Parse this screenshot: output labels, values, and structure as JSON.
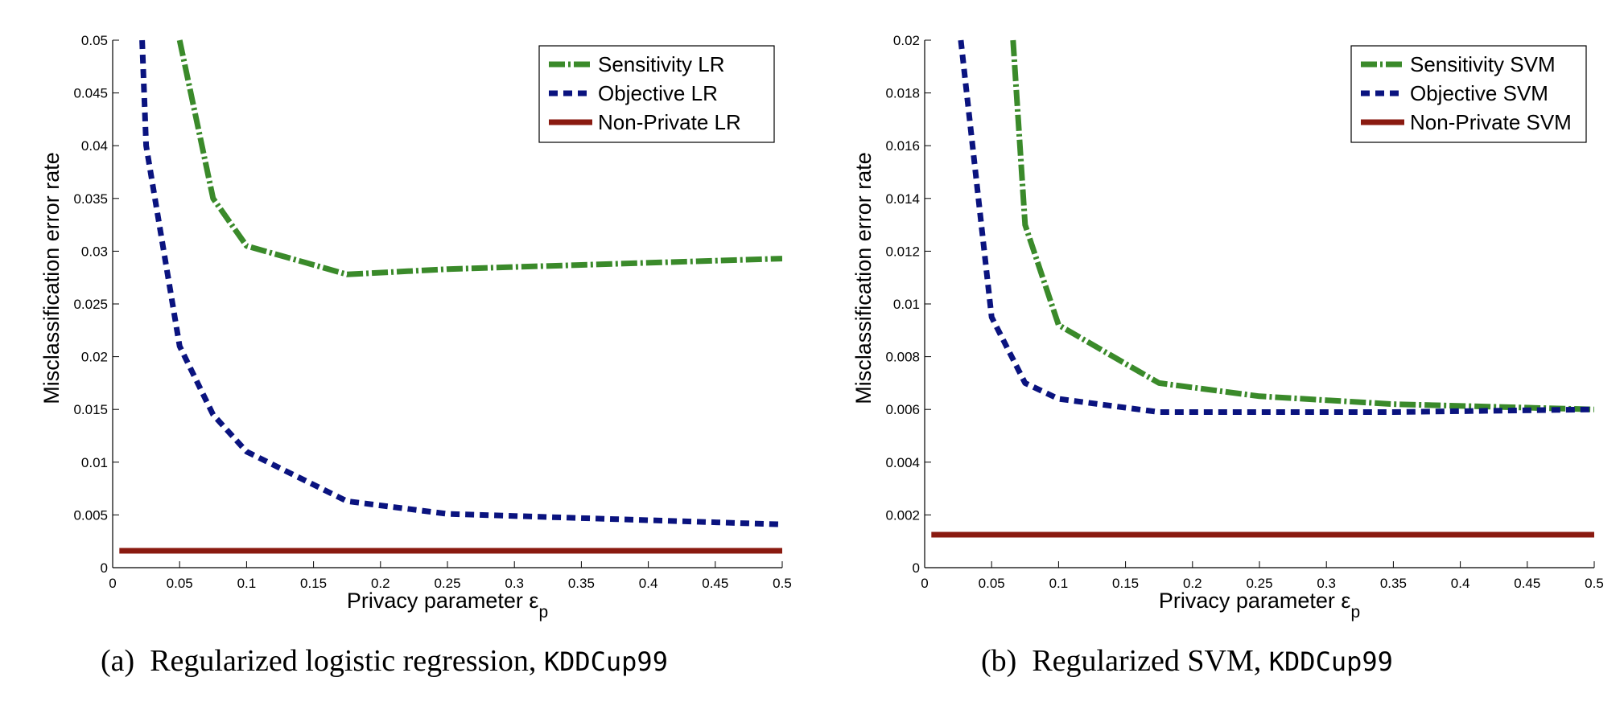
{
  "colors": {
    "sensitivity": "#3a8a2a",
    "objective": "#0a137f",
    "nonprivate": "#8a1a10"
  },
  "chart_data": [
    {
      "type": "line",
      "caption_prefix": "(a)",
      "caption_text": "Regularized logistic regression,",
      "caption_mono": "KDDCup99",
      "xlabel": "Privacy parameter ε",
      "xlabel_sub": "p",
      "ylabel": "Misclassification error rate",
      "xlim": [
        0,
        0.5
      ],
      "ylim": [
        0,
        0.05
      ],
      "xticks": [
        0,
        0.05,
        0.1,
        0.15,
        0.2,
        0.25,
        0.3,
        0.35,
        0.4,
        0.45,
        0.5
      ],
      "xtick_labels": [
        "0",
        "0.05",
        "0.1",
        "0.15",
        "0.2",
        "0.25",
        "0.3",
        "0.35",
        "0.4",
        "0.45",
        "0.5"
      ],
      "yticks": [
        0,
        0.005,
        0.01,
        0.015,
        0.02,
        0.025,
        0.03,
        0.035,
        0.04,
        0.045,
        0.05
      ],
      "ytick_labels": [
        "0",
        "0.005",
        "0.01",
        "0.015",
        "0.02",
        "0.025",
        "0.03",
        "0.035",
        "0.04",
        "0.045",
        "0.05"
      ],
      "legend_position": "top-right",
      "series": [
        {
          "name": "Sensitivity LR",
          "style": "sensitivity",
          "x": [
            0.05,
            0.075,
            0.1,
            0.175,
            0.25,
            0.35,
            0.5
          ],
          "y": [
            0.05,
            0.035,
            0.0305,
            0.0278,
            0.0283,
            0.0287,
            0.0293
          ]
        },
        {
          "name": "Objective LR",
          "style": "objective",
          "x": [
            0.022,
            0.025,
            0.05,
            0.075,
            0.1,
            0.175,
            0.25,
            0.35,
            0.5
          ],
          "y": [
            0.05,
            0.04,
            0.021,
            0.0145,
            0.011,
            0.0063,
            0.0051,
            0.0047,
            0.0041
          ]
        },
        {
          "name": "Non-Private LR",
          "style": "nonprivate",
          "x": [
            0.005,
            0.5
          ],
          "y": [
            0.0016,
            0.0016
          ]
        }
      ]
    },
    {
      "type": "line",
      "caption_prefix": "(b)",
      "caption_text": "Regularized SVM,",
      "caption_mono": "KDDCup99",
      "xlabel": "Privacy parameter ε",
      "xlabel_sub": "p",
      "ylabel": "Misclassification error rate",
      "xlim": [
        0,
        0.5
      ],
      "ylim": [
        0,
        0.02
      ],
      "xticks": [
        0,
        0.05,
        0.1,
        0.15,
        0.2,
        0.25,
        0.3,
        0.35,
        0.4,
        0.45,
        0.5
      ],
      "xtick_labels": [
        "0",
        "0.05",
        "0.1",
        "0.15",
        "0.2",
        "0.25",
        "0.3",
        "0.35",
        "0.4",
        "0.45",
        "0.5"
      ],
      "yticks": [
        0,
        0.002,
        0.004,
        0.006,
        0.008,
        0.01,
        0.012,
        0.014,
        0.016,
        0.018,
        0.02
      ],
      "ytick_labels": [
        "0",
        "0.002",
        "0.004",
        "0.006",
        "0.008",
        "0.01",
        "0.012",
        "0.014",
        "0.016",
        "0.018",
        "0.02"
      ],
      "legend_position": "top-right",
      "series": [
        {
          "name": "Sensitivity SVM",
          "style": "sensitivity",
          "x": [
            0.066,
            0.075,
            0.1,
            0.175,
            0.25,
            0.35,
            0.5
          ],
          "y": [
            0.02,
            0.013,
            0.0092,
            0.007,
            0.0065,
            0.0062,
            0.006
          ]
        },
        {
          "name": "Objective SVM",
          "style": "objective",
          "x": [
            0.027,
            0.05,
            0.075,
            0.1,
            0.175,
            0.25,
            0.35,
            0.5
          ],
          "y": [
            0.02,
            0.0095,
            0.007,
            0.0064,
            0.0059,
            0.0059,
            0.0059,
            0.006
          ]
        },
        {
          "name": "Non-Private SVM",
          "style": "nonprivate",
          "x": [
            0.005,
            0.5
          ],
          "y": [
            0.00125,
            0.00125
          ]
        }
      ]
    }
  ]
}
